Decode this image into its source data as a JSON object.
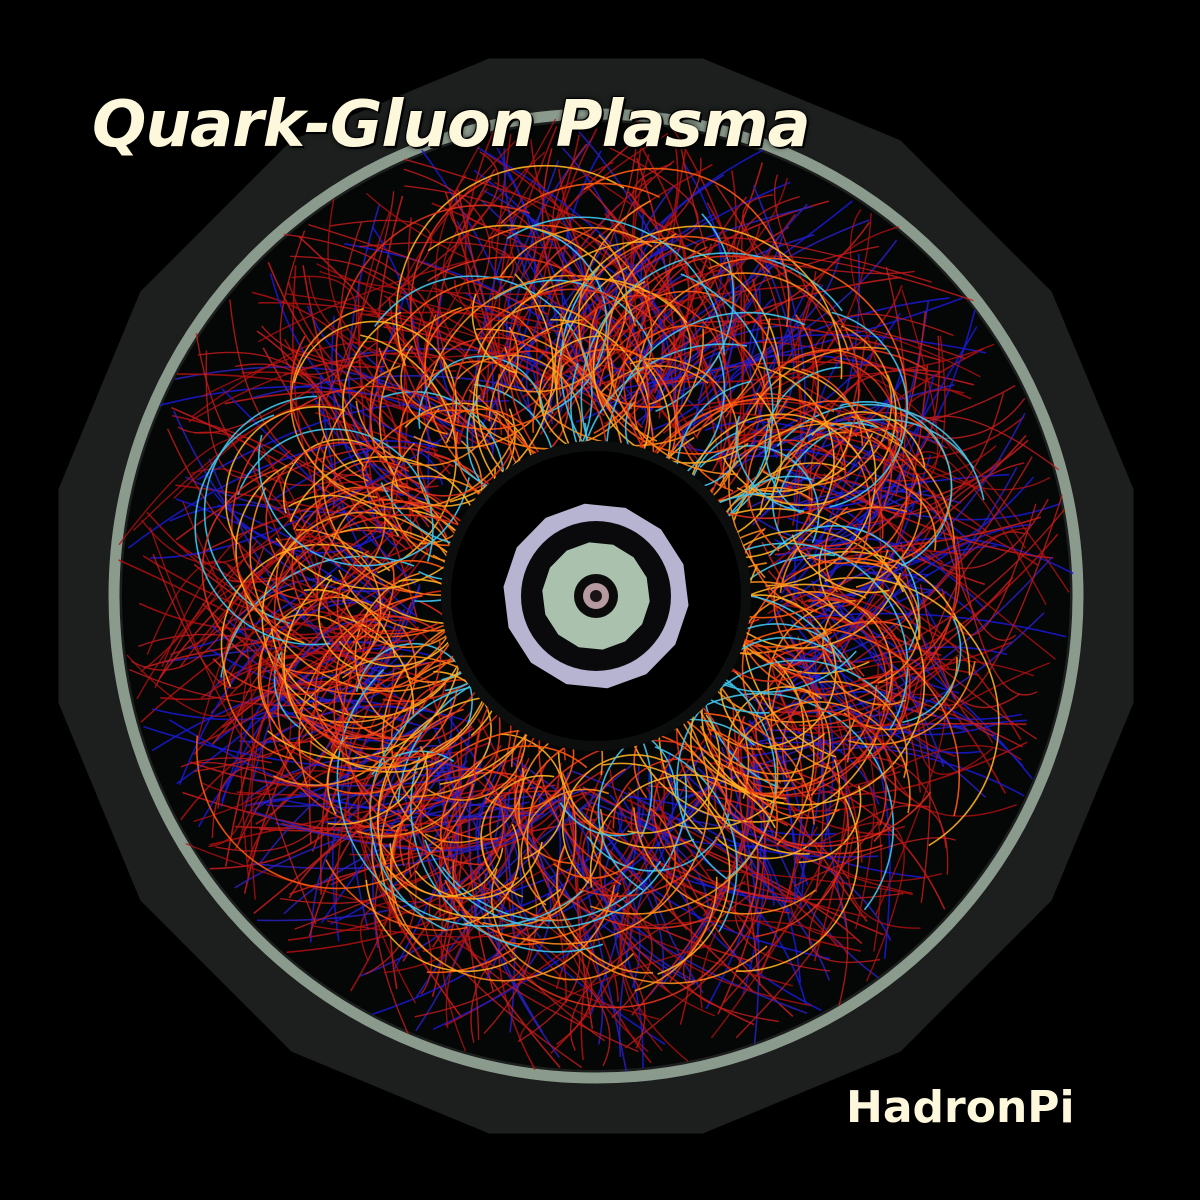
{
  "cover": {
    "title": "Quark-Gluon Plasma",
    "artist": "HadronPi"
  },
  "palette": {
    "background": "#000000",
    "outer_ring": "#8a9a8c",
    "detector_band": "#1c1f1d",
    "inner_ring": "#b6b4d0",
    "core_ring": "#a9c1ad",
    "center_dot": "#b59aa0",
    "title_text": "#fdf7dc",
    "tracks_outer": [
      "#b01010",
      "#c81c1c",
      "#1a1ad8",
      "#2a20c0"
    ],
    "tracks_inner": [
      "#ff5a10",
      "#ffb020",
      "#40c8f0",
      "#e03018",
      "#ff8c1a"
    ]
  }
}
